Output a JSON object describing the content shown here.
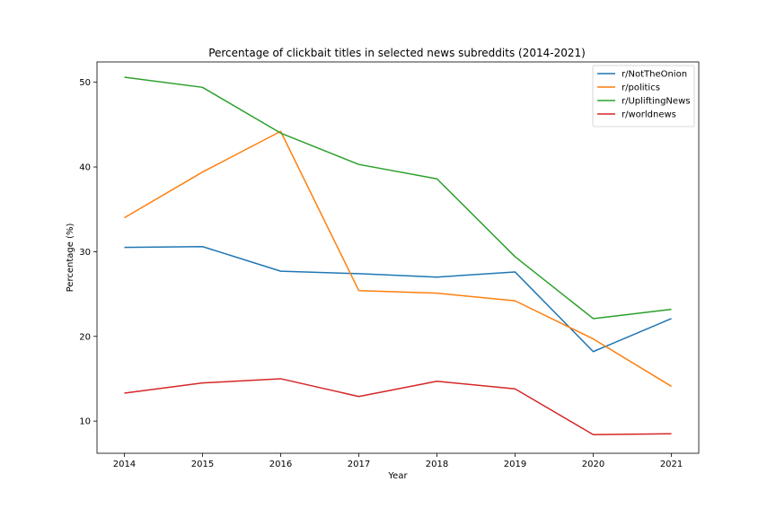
{
  "chart_data": {
    "type": "line",
    "title": "Percentage of clickbait titles in selected news subreddits (2014-2021)",
    "xlabel": "Year",
    "ylabel": "Percentage (%)",
    "x": [
      "2014",
      "2015",
      "2016",
      "2017",
      "2018",
      "2019",
      "2020",
      "2021"
    ],
    "xlim": [
      2013.65,
      2021.35
    ],
    "ylim": [
      6.2,
      52.4
    ],
    "yticks": [
      10,
      20,
      30,
      40,
      50
    ],
    "grid": false,
    "legend_position": "top-right",
    "series": [
      {
        "name": "r/NotTheOnion",
        "color": "#1f77b4",
        "values": [
          30.5,
          30.6,
          27.7,
          27.4,
          27.0,
          27.6,
          18.2,
          22.1
        ]
      },
      {
        "name": "r/politics",
        "color": "#ff7f0e",
        "values": [
          34.0,
          39.4,
          44.2,
          25.4,
          25.1,
          24.2,
          19.7,
          14.1
        ]
      },
      {
        "name": "r/UpliftingNews",
        "color": "#2ca02c",
        "values": [
          50.6,
          49.4,
          44.0,
          40.3,
          38.6,
          29.4,
          22.1,
          23.2
        ]
      },
      {
        "name": "r/worldnews",
        "color": "#d62728",
        "values": [
          13.3,
          14.5,
          15.0,
          12.9,
          14.7,
          13.8,
          8.4,
          8.5
        ]
      }
    ]
  }
}
